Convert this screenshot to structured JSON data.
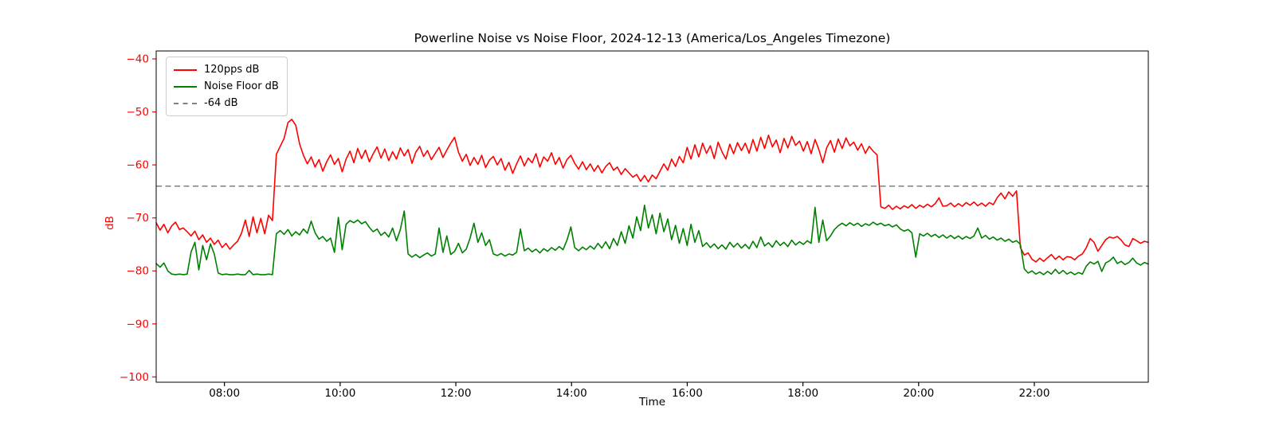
{
  "figure": {
    "background": "#ffffff"
  },
  "chart_data": {
    "type": "line",
    "title": "Powerline Noise vs Noise Floor, 2024-12-13 (America/Los_Angeles Timezone)",
    "xlabel": "Time",
    "ylabel": "dB",
    "grid": false,
    "x_axis": {
      "min_hour": 6.82,
      "max_hour": 23.97,
      "tick_color": "#000000",
      "ticks": [
        {
          "hour": 8,
          "label": "08:00"
        },
        {
          "hour": 10,
          "label": "10:00"
        },
        {
          "hour": 12,
          "label": "12:00"
        },
        {
          "hour": 14,
          "label": "14:00"
        },
        {
          "hour": 16,
          "label": "16:00"
        },
        {
          "hour": 18,
          "label": "18:00"
        },
        {
          "hour": 20,
          "label": "20:00"
        },
        {
          "hour": 22,
          "label": "22:00"
        }
      ]
    },
    "y_axis": {
      "min": -101,
      "max": -38.5,
      "tick_color": "#ff0000",
      "label_color": "#ff0000",
      "ticks": [
        {
          "value": -40,
          "label": "−40"
        },
        {
          "value": -50,
          "label": "−50"
        },
        {
          "value": -60,
          "label": "−60"
        },
        {
          "value": -70,
          "label": "−70"
        },
        {
          "value": -80,
          "label": "−80"
        },
        {
          "value": -90,
          "label": "−90"
        },
        {
          "value": -100,
          "label": "−100"
        }
      ]
    },
    "reference_line": {
      "value": -64,
      "label": "-64 dB",
      "color": "#808080",
      "style": "dashed"
    },
    "legend": {
      "position": "upper-left",
      "entries": [
        {
          "label": "120pps dB",
          "color": "#ff0000",
          "dash": false
        },
        {
          "label": "Noise Floor dB",
          "color": "#008000",
          "dash": false
        },
        {
          "label": "-64 dB",
          "color": "#808080",
          "dash": true
        }
      ]
    },
    "series": [
      {
        "name": "120pps dB",
        "color": "#ff0000",
        "style": "solid",
        "x_start_hour": 6.82,
        "x_end_hour": 23.97,
        "values": [
          -70.9,
          -72.3,
          -71.2,
          -72.8,
          -71.5,
          -70.8,
          -72.2,
          -71.9,
          -72.6,
          -73.4,
          -72.5,
          -74.1,
          -73.2,
          -74.6,
          -73.8,
          -75.0,
          -74.2,
          -75.6,
          -74.8,
          -75.9,
          -75.1,
          -74.4,
          -72.9,
          -70.4,
          -73.5,
          -69.8,
          -72.8,
          -70.1,
          -73.0,
          -69.5,
          -70.5,
          -58.0,
          -56.5,
          -55.0,
          -52.0,
          -51.4,
          -52.5,
          -56.0,
          -58.2,
          -59.8,
          -58.5,
          -60.4,
          -59.0,
          -61.2,
          -59.4,
          -58.1,
          -59.9,
          -58.8,
          -61.3,
          -58.9,
          -57.4,
          -59.6,
          -56.9,
          -58.8,
          -57.2,
          -59.4,
          -57.9,
          -56.6,
          -58.7,
          -57.0,
          -59.2,
          -57.5,
          -58.9,
          -56.8,
          -58.3,
          -57.1,
          -59.7,
          -57.6,
          -56.5,
          -58.4,
          -57.3,
          -59.0,
          -57.8,
          -56.7,
          -58.6,
          -57.2,
          -55.9,
          -54.8,
          -57.6,
          -59.3,
          -58.0,
          -60.1,
          -58.6,
          -59.9,
          -58.2,
          -60.5,
          -59.1,
          -58.4,
          -60.0,
          -58.8,
          -61.0,
          -59.5,
          -61.6,
          -59.8,
          -58.3,
          -60.2,
          -58.7,
          -59.6,
          -57.9,
          -60.4,
          -58.5,
          -59.3,
          -57.7,
          -59.9,
          -58.6,
          -60.6,
          -59.0,
          -58.2,
          -59.7,
          -60.8,
          -59.4,
          -60.9,
          -59.8,
          -61.2,
          -60.1,
          -61.5,
          -60.3,
          -59.6,
          -61.0,
          -60.4,
          -61.8,
          -60.7,
          -61.5,
          -62.3,
          -61.8,
          -63.1,
          -62.0,
          -63.2,
          -61.9,
          -62.6,
          -61.2,
          -59.8,
          -61.0,
          -58.9,
          -60.3,
          -58.4,
          -59.6,
          -56.7,
          -58.9,
          -56.2,
          -58.5,
          -55.9,
          -57.8,
          -56.4,
          -58.8,
          -55.7,
          -57.5,
          -58.9,
          -56.1,
          -57.9,
          -55.8,
          -57.3,
          -55.9,
          -57.8,
          -55.2,
          -57.4,
          -54.8,
          -56.9,
          -54.4,
          -56.6,
          -55.3,
          -57.7,
          -55.0,
          -56.8,
          -54.6,
          -56.3,
          -55.5,
          -57.4,
          -55.6,
          -57.9,
          -55.2,
          -57.1,
          -59.6,
          -56.8,
          -55.4,
          -57.6,
          -55.1,
          -56.9,
          -54.9,
          -56.4,
          -55.7,
          -57.2,
          -56.0,
          -57.8,
          -56.5,
          -57.4,
          -58.1,
          -67.9,
          -68.2,
          -67.6,
          -68.4,
          -67.8,
          -68.3,
          -67.7,
          -68.1,
          -67.5,
          -68.2,
          -67.6,
          -68.0,
          -67.4,
          -67.9,
          -67.3,
          -66.2,
          -67.8,
          -67.7,
          -67.2,
          -67.9,
          -67.3,
          -67.8,
          -67.1,
          -67.6,
          -67.0,
          -67.7,
          -67.2,
          -67.8,
          -67.1,
          -67.5,
          -66.2,
          -65.3,
          -66.4,
          -65.1,
          -65.9,
          -64.9,
          -75.6,
          -77.0,
          -76.6,
          -77.8,
          -78.3,
          -77.6,
          -78.2,
          -77.5,
          -76.9,
          -77.8,
          -77.2,
          -77.9,
          -77.3,
          -77.4,
          -77.9,
          -77.2,
          -76.8,
          -75.6,
          -73.9,
          -74.6,
          -76.3,
          -75.2,
          -74.1,
          -73.6,
          -73.8,
          -73.5,
          -74.2,
          -75.1,
          -75.4,
          -73.9,
          -74.3,
          -74.8,
          -74.4,
          -74.6
        ]
      },
      {
        "name": "Noise Floor dB",
        "color": "#008000",
        "style": "solid",
        "x_start_hour": 6.82,
        "x_end_hour": 23.97,
        "values": [
          -78.6,
          -79.3,
          -78.5,
          -80.0,
          -80.6,
          -80.7,
          -80.6,
          -80.7,
          -80.6,
          -76.4,
          -74.6,
          -79.8,
          -75.2,
          -77.9,
          -74.9,
          -76.8,
          -80.4,
          -80.7,
          -80.6,
          -80.7,
          -80.7,
          -80.6,
          -80.7,
          -80.7,
          -79.9,
          -80.7,
          -80.6,
          -80.7,
          -80.7,
          -80.6,
          -80.7,
          -73.0,
          -72.4,
          -73.1,
          -72.2,
          -73.4,
          -72.6,
          -73.2,
          -72.1,
          -72.9,
          -70.6,
          -72.8,
          -74.0,
          -73.5,
          -74.4,
          -73.8,
          -76.5,
          -69.9,
          -76.0,
          -71.2,
          -70.5,
          -70.9,
          -70.4,
          -71.1,
          -70.7,
          -71.8,
          -72.6,
          -72.1,
          -73.3,
          -72.7,
          -73.6,
          -71.9,
          -74.3,
          -72.2,
          -68.7,
          -76.8,
          -77.4,
          -76.9,
          -77.5,
          -77.0,
          -76.6,
          -77.2,
          -76.8,
          -71.9,
          -76.5,
          -73.4,
          -76.9,
          -76.3,
          -74.8,
          -76.6,
          -75.9,
          -73.8,
          -71.0,
          -74.6,
          -72.8,
          -75.2,
          -74.1,
          -76.8,
          -77.1,
          -76.7,
          -77.2,
          -76.8,
          -77.0,
          -76.5,
          -72.1,
          -76.2,
          -75.7,
          -76.4,
          -75.9,
          -76.6,
          -75.8,
          -76.3,
          -75.6,
          -76.1,
          -75.4,
          -76.0,
          -74.2,
          -71.7,
          -75.6,
          -76.2,
          -75.5,
          -76.0,
          -75.3,
          -75.9,
          -74.8,
          -75.7,
          -74.5,
          -75.8,
          -73.9,
          -75.2,
          -72.6,
          -74.8,
          -71.5,
          -73.8,
          -69.8,
          -72.4,
          -67.6,
          -71.9,
          -69.4,
          -73.0,
          -69.1,
          -72.6,
          -70.2,
          -74.1,
          -71.4,
          -74.8,
          -72.0,
          -75.2,
          -71.2,
          -74.6,
          -72.4,
          -75.4,
          -74.7,
          -75.6,
          -74.9,
          -75.8,
          -75.1,
          -75.9,
          -74.6,
          -75.5,
          -74.8,
          -75.7,
          -75.0,
          -75.8,
          -74.4,
          -75.6,
          -73.6,
          -75.3,
          -74.7,
          -75.5,
          -74.3,
          -75.2,
          -74.6,
          -75.4,
          -74.2,
          -75.1,
          -74.5,
          -75.0,
          -74.3,
          -74.8,
          -68.0,
          -74.6,
          -70.4,
          -74.3,
          -73.4,
          -72.2,
          -71.5,
          -71.0,
          -71.5,
          -70.9,
          -71.4,
          -71.0,
          -71.6,
          -71.1,
          -71.4,
          -70.8,
          -71.3,
          -71.0,
          -71.5,
          -71.2,
          -71.7,
          -71.3,
          -72.1,
          -72.5,
          -72.2,
          -72.8,
          -77.4,
          -73.0,
          -73.4,
          -72.9,
          -73.5,
          -73.1,
          -73.7,
          -73.2,
          -73.8,
          -73.3,
          -73.9,
          -73.4,
          -74.0,
          -73.5,
          -73.9,
          -73.4,
          -71.9,
          -73.8,
          -73.3,
          -74.0,
          -73.6,
          -74.2,
          -73.8,
          -74.4,
          -74.0,
          -74.6,
          -74.3,
          -75.0,
          -79.6,
          -80.4,
          -80.0,
          -80.6,
          -80.2,
          -80.7,
          -80.1,
          -80.6,
          -79.7,
          -80.5,
          -79.9,
          -80.6,
          -80.2,
          -80.7,
          -80.3,
          -80.6,
          -79.1,
          -78.3,
          -78.7,
          -78.2,
          -80.1,
          -78.5,
          -78.1,
          -77.4,
          -78.6,
          -78.2,
          -78.8,
          -78.4,
          -77.6,
          -78.5,
          -78.9,
          -78.4,
          -78.7
        ]
      }
    ]
  }
}
